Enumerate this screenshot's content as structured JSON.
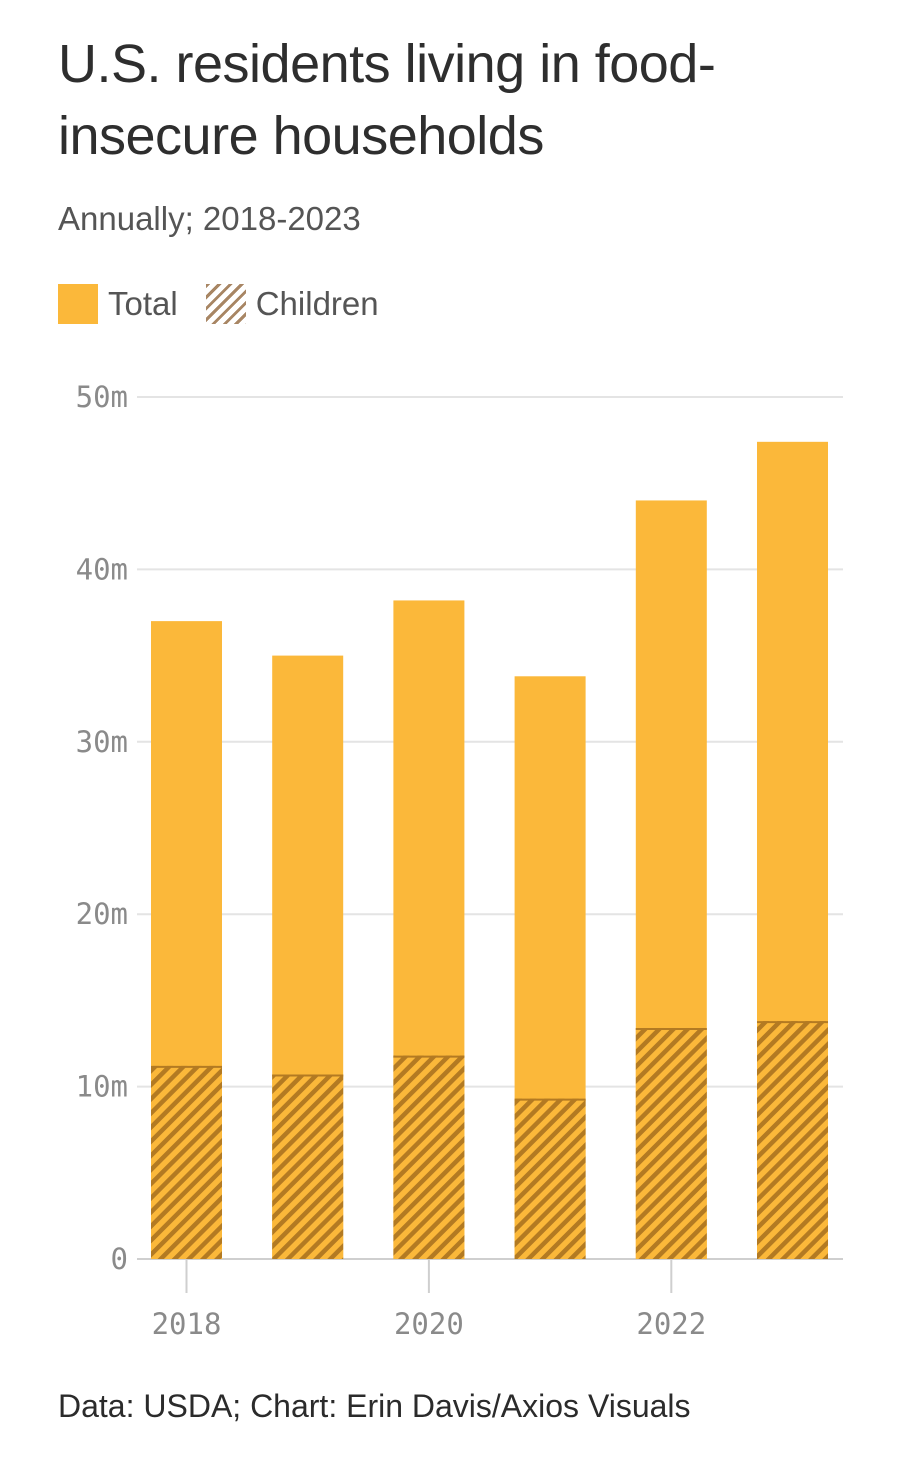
{
  "chart_data": {
    "type": "bar",
    "title": "U.S. residents living in food-insecure households",
    "subtitle": "Annually; 2018-2023",
    "source": "Data: USDA; Chart: Erin Davis/Axios Visuals",
    "categories": [
      "2018",
      "2019",
      "2020",
      "2021",
      "2022",
      "2023"
    ],
    "x_tick_labels": [
      "2018",
      "2020",
      "2022"
    ],
    "y_ticks": [
      0,
      10,
      20,
      30,
      40,
      50
    ],
    "y_tick_labels": [
      "0",
      "10m",
      "20m",
      "30m",
      "40m",
      "50m"
    ],
    "ylim": [
      0,
      50
    ],
    "ylabel": "",
    "xlabel": "",
    "grid": true,
    "legend_position": "top-left",
    "series": [
      {
        "name": "Total",
        "values": [
          37.0,
          35.0,
          38.2,
          33.8,
          44.0,
          47.4
        ],
        "color": "#fbb83a",
        "pattern": "solid"
      },
      {
        "name": "Children",
        "values": [
          11.2,
          10.7,
          11.8,
          9.3,
          13.4,
          13.8
        ],
        "color": "#b37a22",
        "pattern": "hatched"
      }
    ]
  }
}
